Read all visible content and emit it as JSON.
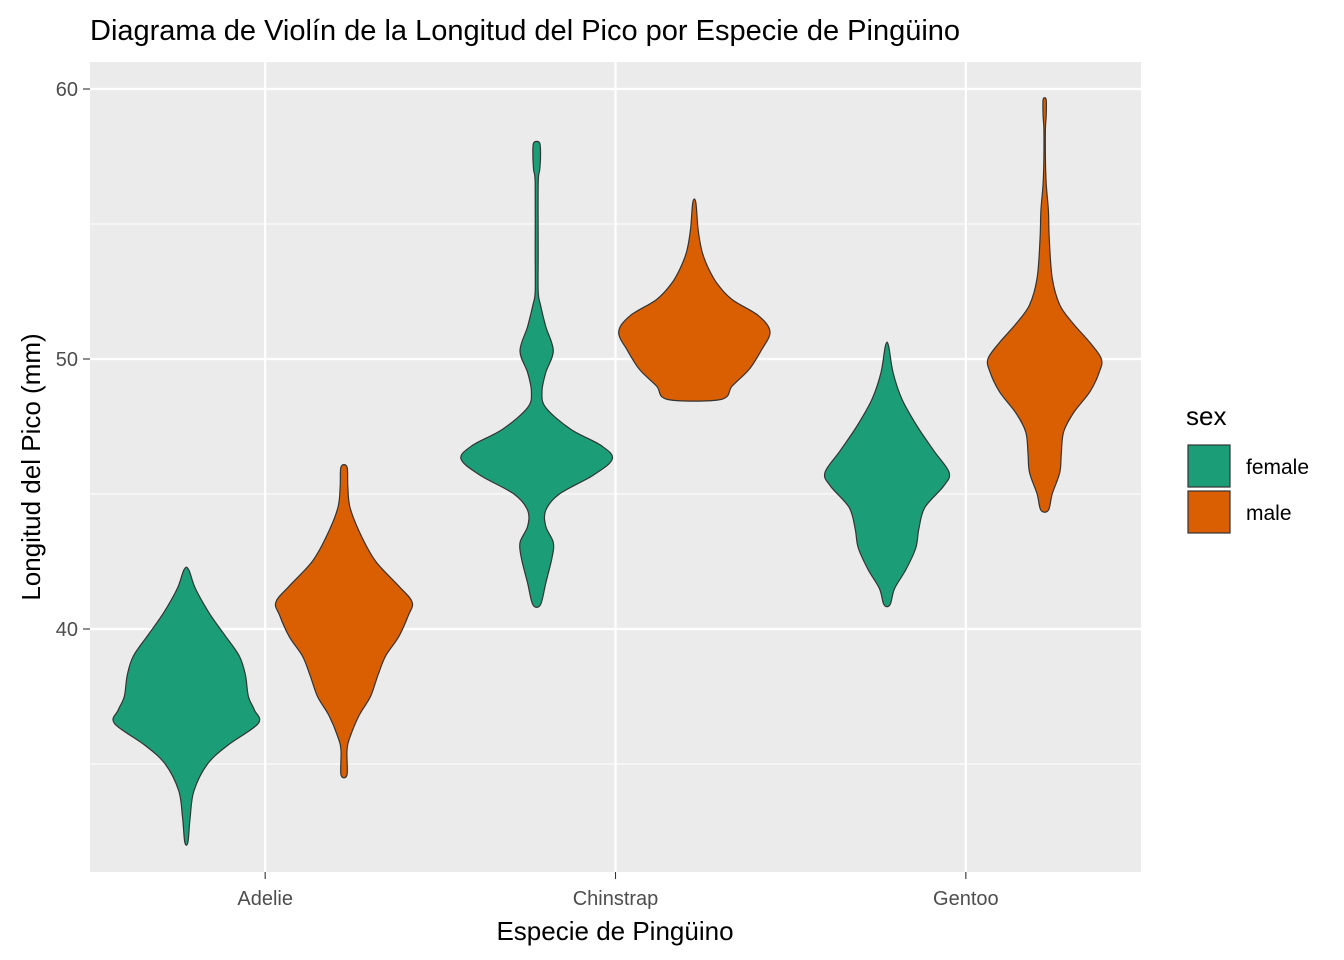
{
  "chart_data": {
    "type": "violin",
    "title": "Diagrama de Violín de la Longitud del Pico por Especie de Pingüino",
    "xlabel": "Especie de Pingüino",
    "ylabel": "Longitud del Pico (mm)",
    "categories": [
      "Adelie",
      "Chinstrap",
      "Gentoo"
    ],
    "ylim": [
      31,
      61
    ],
    "yticks": [
      40,
      50,
      60
    ],
    "ytick_labels": [
      "40",
      "50",
      "60"
    ],
    "grid": true,
    "legend": {
      "title": "sex",
      "position": "right",
      "entries": [
        {
          "label": "female",
          "color": "#1b9e77"
        },
        {
          "label": "male",
          "color": "#d95f02"
        }
      ]
    },
    "series": [
      {
        "name": "female",
        "color": "#1b9e77",
        "violins": [
          {
            "category": "Adelie",
            "min": 32.1,
            "max": 42.2,
            "density": [
              [
                32.1,
                0.02
              ],
              [
                33.0,
                0.05
              ],
              [
                34.0,
                0.1
              ],
              [
                35.0,
                0.28
              ],
              [
                35.7,
                0.55
              ],
              [
                36.5,
                0.95
              ],
              [
                37.0,
                0.9
              ],
              [
                37.5,
                0.82
              ],
              [
                38.3,
                0.78
              ],
              [
                39.0,
                0.7
              ],
              [
                39.8,
                0.5
              ],
              [
                40.6,
                0.3
              ],
              [
                41.5,
                0.12
              ],
              [
                42.2,
                0.03
              ]
            ]
          },
          {
            "category": "Chinstrap",
            "min": 40.9,
            "max": 58.0,
            "density": [
              [
                40.9,
                0.05
              ],
              [
                41.7,
                0.12
              ],
              [
                42.6,
                0.2
              ],
              [
                43.2,
                0.22
              ],
              [
                43.8,
                0.12
              ],
              [
                44.4,
                0.12
              ],
              [
                45.0,
                0.3
              ],
              [
                45.7,
                0.75
              ],
              [
                46.3,
                1.0
              ],
              [
                46.8,
                0.85
              ],
              [
                47.4,
                0.45
              ],
              [
                48.2,
                0.12
              ],
              [
                48.8,
                0.07
              ],
              [
                49.5,
                0.12
              ],
              [
                50.3,
                0.22
              ],
              [
                51.2,
                0.12
              ],
              [
                52.0,
                0.05
              ],
              [
                52.5,
                0.02
              ],
              [
                54.0,
                0.02
              ],
              [
                56.5,
                0.02
              ],
              [
                57.0,
                0.04
              ],
              [
                57.5,
                0.05
              ],
              [
                58.0,
                0.04
              ]
            ]
          },
          {
            "category": "Gentoo",
            "min": 40.9,
            "max": 50.5,
            "density": [
              [
                40.9,
                0.04
              ],
              [
                41.5,
                0.1
              ],
              [
                42.2,
                0.25
              ],
              [
                43.0,
                0.38
              ],
              [
                43.7,
                0.42
              ],
              [
                44.5,
                0.5
              ],
              [
                45.3,
                0.75
              ],
              [
                45.8,
                0.82
              ],
              [
                46.6,
                0.62
              ],
              [
                47.5,
                0.4
              ],
              [
                48.5,
                0.2
              ],
              [
                49.5,
                0.08
              ],
              [
                50.5,
                0.02
              ]
            ]
          }
        ]
      },
      {
        "name": "male",
        "color": "#d95f02",
        "violins": [
          {
            "category": "Adelie",
            "min": 34.6,
            "max": 46.0,
            "density": [
              [
                34.6,
                0.04
              ],
              [
                35.5,
                0.04
              ],
              [
                36.0,
                0.08
              ],
              [
                36.8,
                0.2
              ],
              [
                37.5,
                0.35
              ],
              [
                38.3,
                0.45
              ],
              [
                39.0,
                0.55
              ],
              [
                39.7,
                0.72
              ],
              [
                40.5,
                0.85
              ],
              [
                41.0,
                0.9
              ],
              [
                41.6,
                0.72
              ],
              [
                42.5,
                0.42
              ],
              [
                43.5,
                0.22
              ],
              [
                44.5,
                0.08
              ],
              [
                45.3,
                0.05
              ],
              [
                46.0,
                0.04
              ]
            ]
          },
          {
            "category": "Chinstrap",
            "min": 48.5,
            "max": 55.8,
            "density": [
              [
                48.5,
                0.35
              ],
              [
                49.0,
                0.5
              ],
              [
                49.6,
                0.72
              ],
              [
                50.3,
                0.88
              ],
              [
                51.0,
                1.0
              ],
              [
                51.6,
                0.85
              ],
              [
                52.2,
                0.5
              ],
              [
                52.8,
                0.3
              ],
              [
                53.4,
                0.18
              ],
              [
                54.0,
                0.1
              ],
              [
                54.8,
                0.05
              ],
              [
                55.8,
                0.02
              ]
            ]
          },
          {
            "category": "Gentoo",
            "min": 44.4,
            "max": 59.6,
            "density": [
              [
                44.4,
                0.05
              ],
              [
                45.0,
                0.1
              ],
              [
                45.8,
                0.2
              ],
              [
                46.5,
                0.22
              ],
              [
                47.3,
                0.25
              ],
              [
                48.0,
                0.38
              ],
              [
                48.8,
                0.6
              ],
              [
                49.5,
                0.72
              ],
              [
                50.0,
                0.75
              ],
              [
                50.6,
                0.6
              ],
              [
                51.3,
                0.38
              ],
              [
                52.0,
                0.2
              ],
              [
                53.0,
                0.1
              ],
              [
                54.5,
                0.06
              ],
              [
                55.5,
                0.05
              ],
              [
                56.5,
                0.02
              ],
              [
                57.5,
                0.01
              ],
              [
                58.5,
                0.01
              ],
              [
                59.0,
                0.02
              ],
              [
                59.6,
                0.02
              ]
            ]
          }
        ]
      }
    ]
  }
}
